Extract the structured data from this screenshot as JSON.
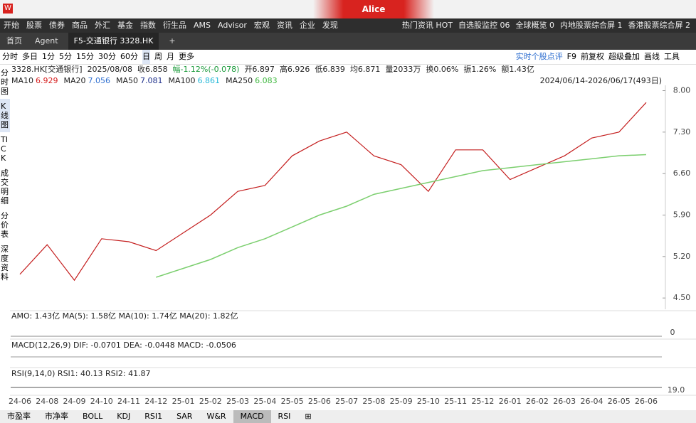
{
  "title_bar": {
    "user": "Alice"
  },
  "menu": {
    "items": [
      "开始",
      "股票",
      "债券",
      "商品",
      "外汇",
      "基金",
      "指数",
      "衍生品",
      "AMS",
      "Advisor",
      "宏观",
      "资讯",
      "企业",
      "发现"
    ],
    "right_items": [
      "热门资讯 HOT",
      "自选股监控 06",
      "全球概览 0",
      "内地股票综合屏 1",
      "香港股票综合屏 2"
    ]
  },
  "tabs": [
    "首页",
    "Agent",
    "F5-交通银行 3328.HK",
    "+"
  ],
  "periods": [
    "分时",
    "多日",
    "1分",
    "5分",
    "15分",
    "30分",
    "60分",
    "日",
    "周",
    "月",
    "更多"
  ],
  "toolbar_right": [
    "实时个股点评",
    "F9",
    "前复权",
    "超级叠加",
    "画线",
    "工具"
  ],
  "sidebar": [
    "分时图",
    "K线图",
    "TICK",
    "成交明细",
    "分价表",
    "深度资料"
  ],
  "quote_line": [
    "3328.HK[交通银行]",
    "2025/08/08",
    "收6.858",
    "幅-1.12%(-0.078)",
    "开6.897",
    "高6.926",
    "低6.839",
    "均6.871",
    "量2033万",
    "换0.06%",
    "振1.26%",
    "额1.43亿"
  ],
  "ma_line": [
    {
      "name": "MA10",
      "value": 6.929,
      "color": "#d62020"
    },
    {
      "name": "MA20",
      "value": 7.056,
      "color": "#2f6fd0"
    },
    {
      "name": "MA50",
      "value": 7.081,
      "color": "#1d2f8a"
    },
    {
      "name": "MA100",
      "value": 6.861,
      "color": "#25b8d8"
    },
    {
      "name": "MA250",
      "value": 6.083,
      "color": "#3fb83f"
    }
  ],
  "range_label": "2024/06/14-2026/06/17(493日)",
  "amo_line": {
    "text": "AMO: 1.43亿 MA(5): 1.58亿 MA(10): 1.74亿 MA(20): 1.82亿",
    "axis": "0"
  },
  "macd_line": {
    "text": "MACD(12,26,9) DIF: -0.0701 DEA: -0.0448 MACD: -0.0506"
  },
  "rsi_line": {
    "text": "RSI(9,14,0) RSI1: 40.13 RSI2: 41.87",
    "axis": "19.0"
  },
  "indicator_tabs": [
    "市盈率",
    "市净率",
    "BOLL",
    "KDJ",
    "RSI1",
    "SAR",
    "W&R",
    "MACD",
    "RSI",
    "⊞"
  ],
  "chart_data": {
    "type": "line",
    "categories": [
      "24-06",
      "24-08",
      "24-09",
      "24-10",
      "24-11",
      "24-12",
      "25-01",
      "25-02",
      "25-03",
      "25-04",
      "25-05",
      "25-06",
      "25-07",
      "25-08",
      "25-09",
      "25-10",
      "25-11",
      "25-12",
      "26-01",
      "26-02",
      "26-03",
      "26-04",
      "26-05",
      "26-06"
    ],
    "series": [
      {
        "color": "#c41e1e",
        "values": [
          4.9,
          5.4,
          4.8,
          5.5,
          5.45,
          5.3,
          5.6,
          5.9,
          6.3,
          6.4,
          6.9,
          7.15,
          7.3,
          6.9,
          6.75,
          6.3,
          7.0,
          7.0,
          6.5,
          6.7,
          6.9,
          7.2,
          7.3,
          7.8
        ]
      },
      {
        "name": "MA250",
        "color": "#7ccf6f",
        "values": [
          null,
          null,
          null,
          null,
          null,
          4.85,
          5.0,
          5.15,
          5.35,
          5.5,
          5.7,
          5.9,
          6.05,
          6.25,
          6.35,
          6.45,
          6.55,
          6.65,
          6.7,
          6.75,
          6.8,
          6.85,
          6.9,
          6.92
        ]
      }
    ],
    "ylim": [
      4.31,
      8.09
    ],
    "yticks": [
      {
        "value": 8,
        "label": "8.00"
      },
      {
        "value": 7.3,
        "label": "7.30"
      },
      {
        "value": 6.6,
        "label": "6.60"
      },
      {
        "value": 5.9,
        "label": "5.90"
      },
      {
        "value": 5.2,
        "label": "5.20"
      },
      {
        "value": 4.5,
        "label": "4.50"
      }
    ],
    "grid": false
  }
}
